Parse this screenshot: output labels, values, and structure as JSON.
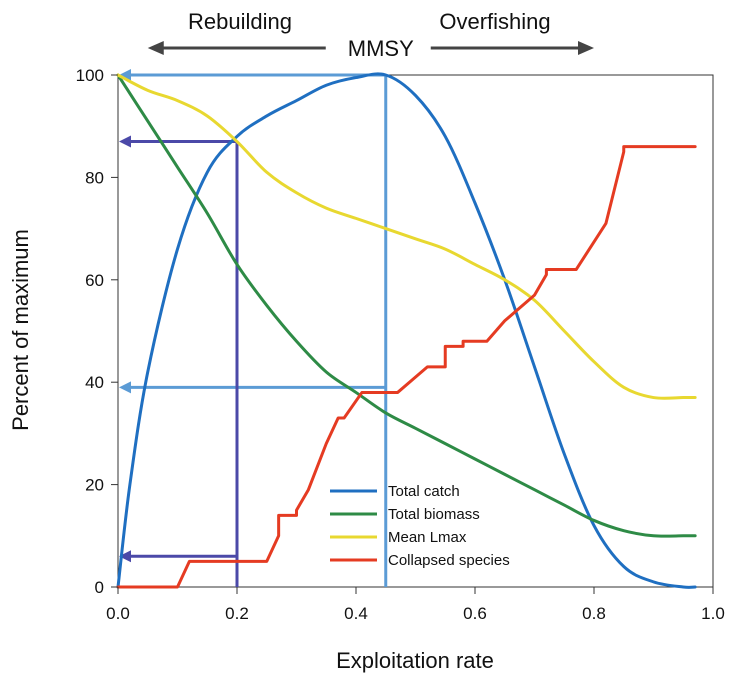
{
  "chart_data": {
    "type": "line",
    "title": "",
    "xlabel": "Exploitation rate",
    "ylabel": "Percent of maximum",
    "xlim": [
      0.0,
      1.0
    ],
    "ylim": [
      0,
      100
    ],
    "xticks": [
      "0.0",
      "0.2",
      "0.4",
      "0.6",
      "0.8",
      "1.0"
    ],
    "yticks": [
      "0",
      "20",
      "40",
      "60",
      "80",
      "100"
    ],
    "grid": false,
    "legend_position": "bottom-center",
    "top_annotations": {
      "left": "Rebuilding",
      "center": "MMSY",
      "right": "Overfishing",
      "left_arrow_to_x": 0.05,
      "right_arrow_to_x": 0.8
    },
    "series": [
      {
        "name": "Total catch",
        "color": "#1f6fc1",
        "x": [
          0.0,
          0.02,
          0.05,
          0.1,
          0.15,
          0.2,
          0.25,
          0.3,
          0.35,
          0.4,
          0.45,
          0.5,
          0.55,
          0.6,
          0.65,
          0.7,
          0.75,
          0.8,
          0.85,
          0.9,
          0.95,
          0.97
        ],
        "values": [
          0,
          20,
          42,
          66,
          81,
          88,
          92,
          95,
          98,
          99.5,
          100,
          96,
          88,
          75,
          60,
          43,
          26,
          12,
          4,
          1,
          0,
          0
        ]
      },
      {
        "name": "Total biomass",
        "color": "#2e8b46",
        "x": [
          0.0,
          0.05,
          0.1,
          0.15,
          0.2,
          0.25,
          0.3,
          0.35,
          0.4,
          0.45,
          0.5,
          0.55,
          0.6,
          0.65,
          0.7,
          0.75,
          0.8,
          0.85,
          0.9,
          0.95,
          0.97
        ],
        "values": [
          100,
          91,
          82,
          73,
          63,
          55,
          48,
          42,
          38,
          34,
          31,
          28,
          25,
          22,
          19,
          16,
          13,
          11,
          10,
          10,
          10
        ]
      },
      {
        "name": "Mean Lmax",
        "color": "#e8d830",
        "x": [
          0.0,
          0.05,
          0.1,
          0.15,
          0.2,
          0.25,
          0.3,
          0.35,
          0.4,
          0.45,
          0.5,
          0.55,
          0.6,
          0.65,
          0.7,
          0.75,
          0.8,
          0.85,
          0.9,
          0.95,
          0.97
        ],
        "values": [
          100,
          97,
          95,
          92,
          87,
          81,
          77,
          74,
          72,
          70,
          68,
          66,
          63,
          60,
          56,
          50,
          44,
          39,
          37,
          37,
          37
        ]
      },
      {
        "name": "Collapsed species",
        "color": "#e53b22",
        "x": [
          0.0,
          0.1,
          0.12,
          0.12,
          0.25,
          0.27,
          0.27,
          0.3,
          0.3,
          0.32,
          0.35,
          0.37,
          0.37,
          0.38,
          0.41,
          0.41,
          0.45,
          0.47,
          0.47,
          0.52,
          0.52,
          0.55,
          0.55,
          0.58,
          0.58,
          0.62,
          0.65,
          0.7,
          0.72,
          0.72,
          0.77,
          0.82,
          0.82,
          0.85,
          0.85,
          0.97
        ],
        "values": [
          0,
          0,
          5,
          5,
          5,
          10,
          14,
          14,
          15,
          19,
          28,
          33,
          33,
          33,
          38,
          38,
          38,
          38,
          38,
          43,
          43,
          43,
          47,
          47,
          48,
          48,
          52,
          57,
          61,
          62,
          62,
          71,
          71,
          85,
          86,
          86
        ]
      }
    ],
    "reference_lines": [
      {
        "color": "#5b9bd5",
        "vertical_at_x": 0.45,
        "horizontal_to_y_axis": [
          100,
          39
        ]
      },
      {
        "color": "#4b49a8",
        "vertical_at_x": 0.2,
        "horizontal_to_y_axis": [
          87,
          6
        ]
      }
    ]
  }
}
